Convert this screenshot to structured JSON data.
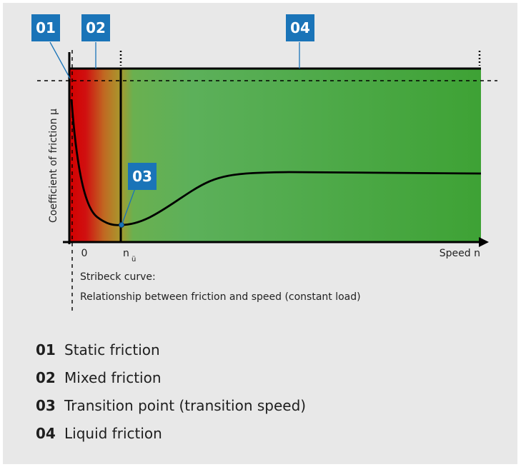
{
  "diagram": {
    "badges": [
      "01",
      "02",
      "03",
      "04"
    ],
    "y_axis_label": "Coefficient of friction μ",
    "x_tick_zero": "0",
    "x_tick_transition": "n",
    "x_tick_transition_sub": "ü",
    "x_axis_label": "Speed n",
    "caption_line1": "Stribeck curve:",
    "caption_line2": "Relationship between friction and speed (constant load)",
    "colors": {
      "badge": "#1a74b8",
      "static_zone": "#d40000",
      "mixed_zone": "#b8862b",
      "liquid_zone": "#3ea235",
      "background": "#e8e8e8"
    }
  },
  "legend": [
    {
      "num": "01",
      "label": "Static friction"
    },
    {
      "num": "02",
      "label": "Mixed friction"
    },
    {
      "num": "03",
      "label": "Transition point (transition speed)"
    },
    {
      "num": "04",
      "label": "Liquid friction"
    }
  ]
}
